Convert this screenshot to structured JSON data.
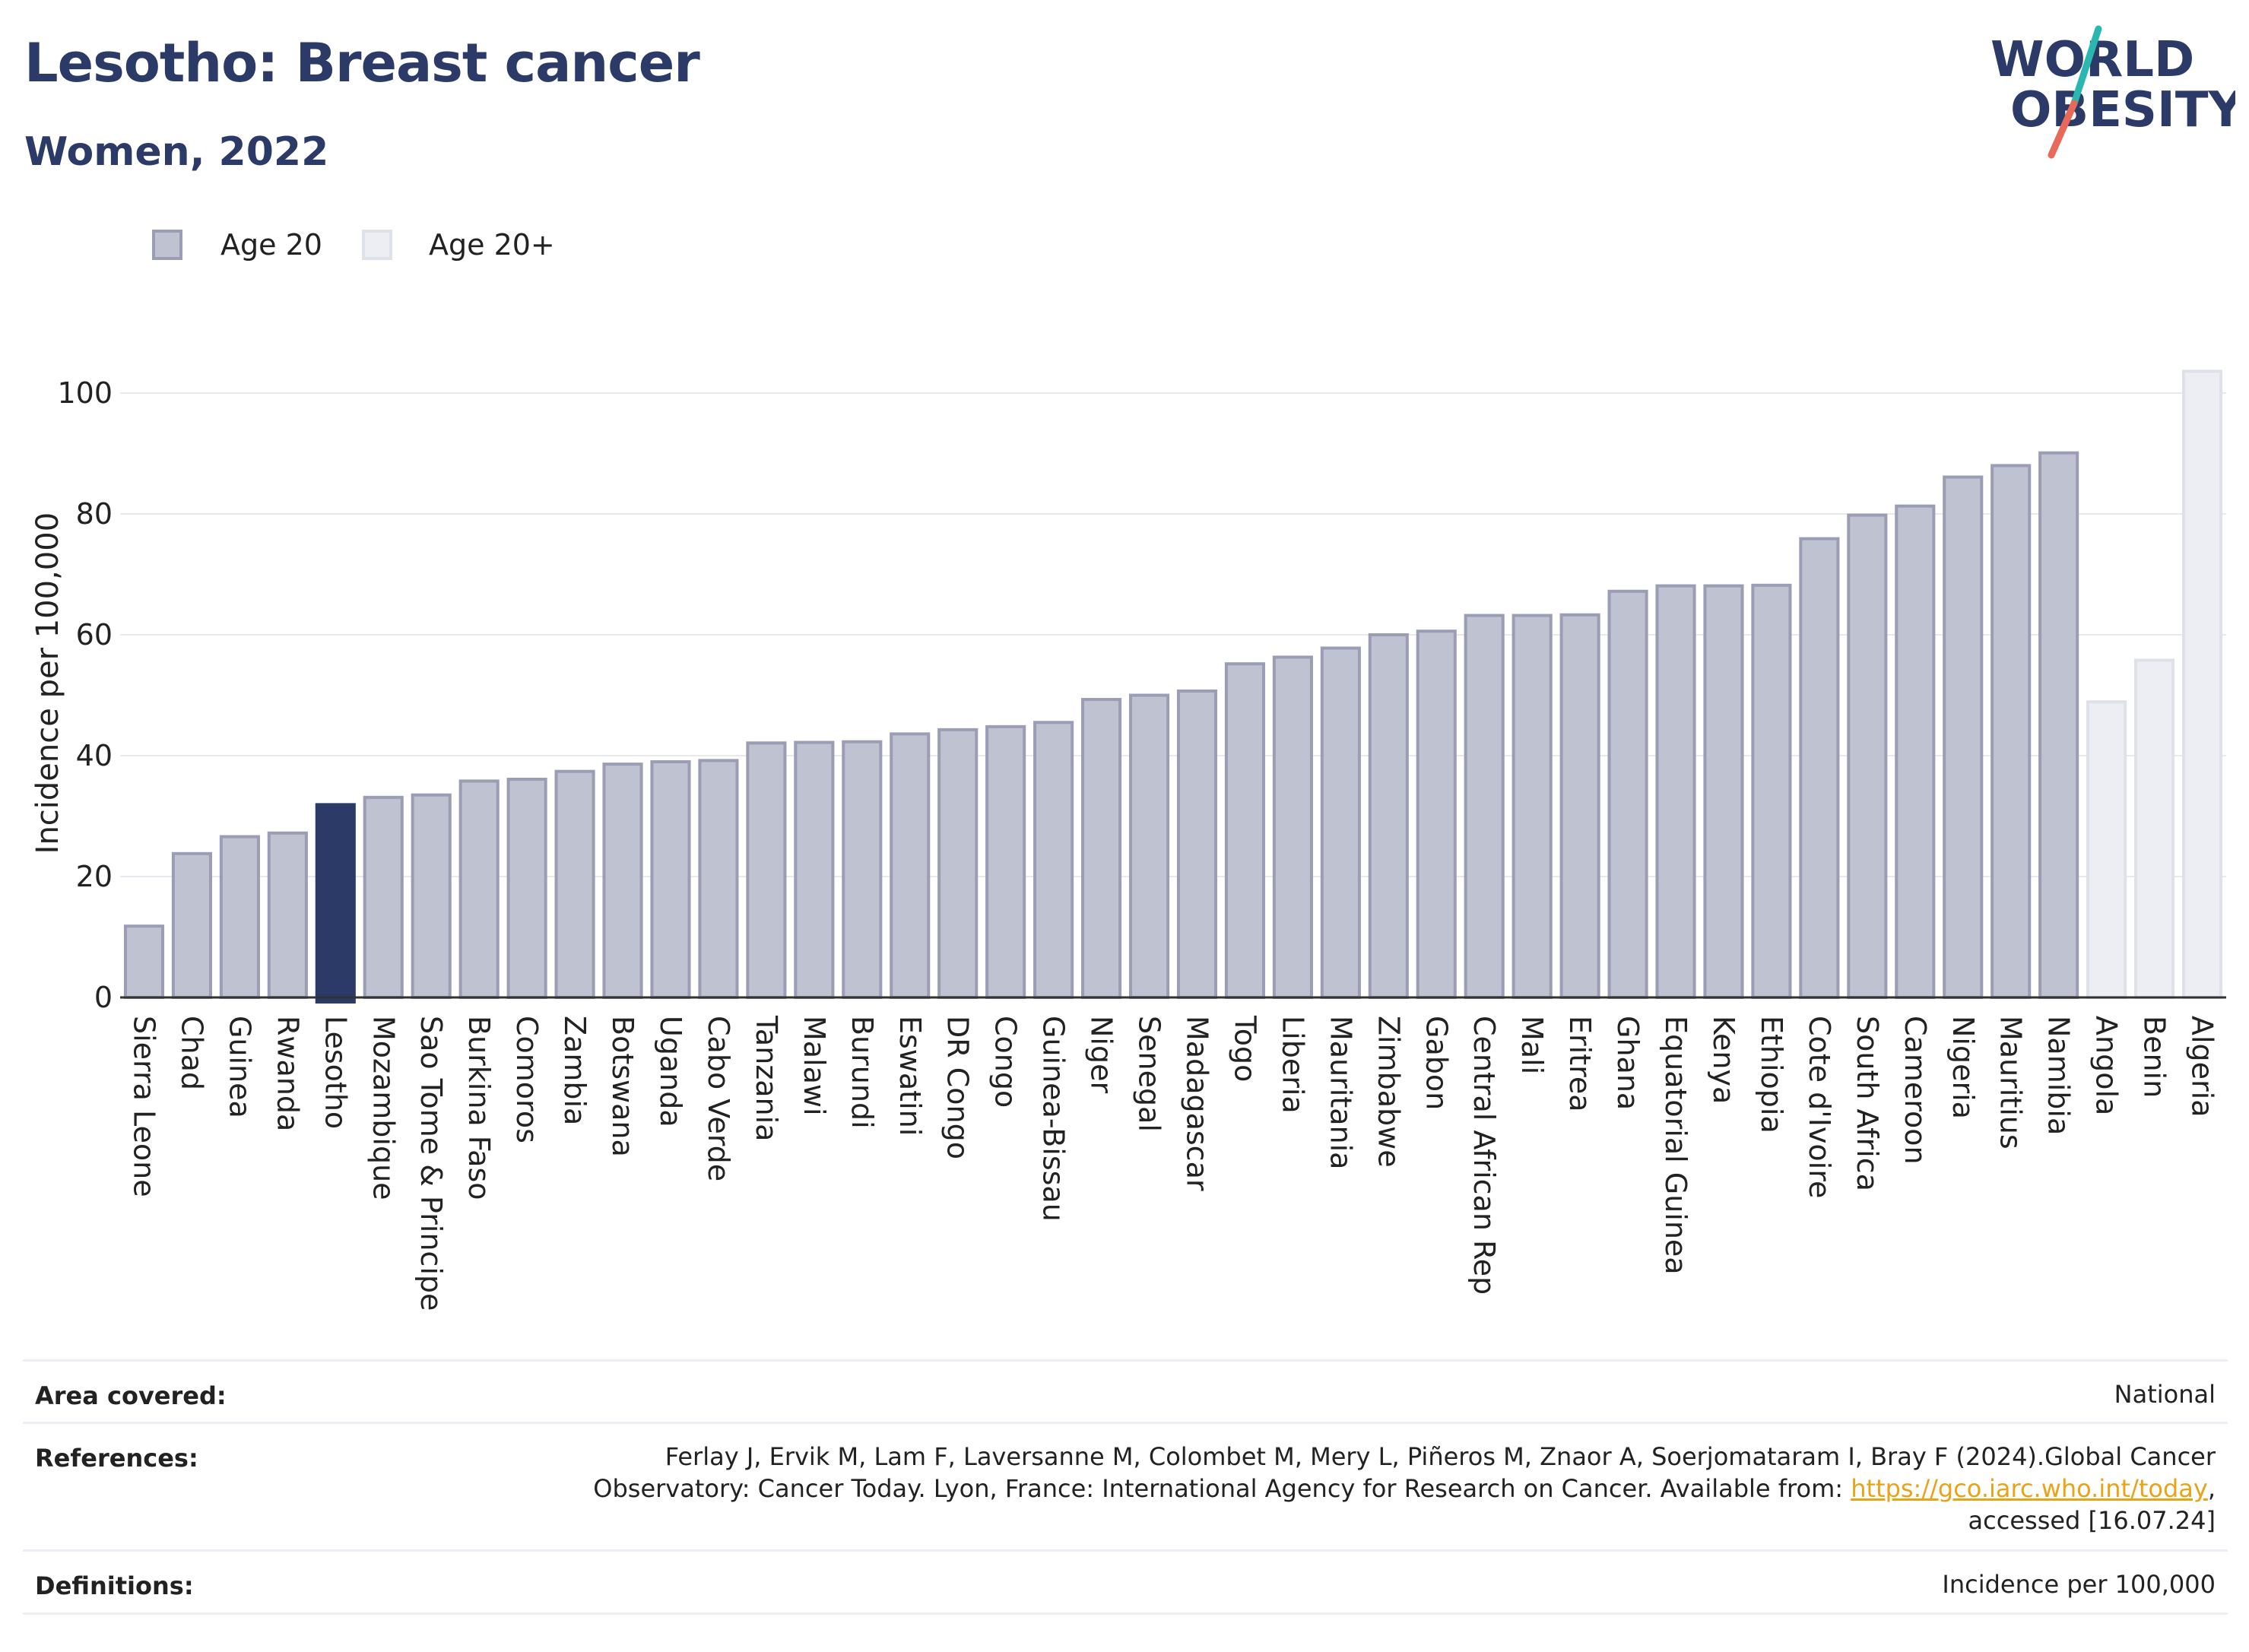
{
  "header": {
    "title": "Lesotho: Breast cancer",
    "subtitle": "Women, 2022"
  },
  "logo": {
    "line1": "WORLD",
    "line2": "OBESITY",
    "colors": {
      "text": "#2b3a67",
      "slash_top": "#2ab7b0",
      "slash_bottom": "#e8685a"
    }
  },
  "legend": [
    {
      "label": "Age 20",
      "fill": "#bfc2d0",
      "stroke": "#9a9db3"
    },
    {
      "label": "Age 20+",
      "fill": "#eceef3",
      "stroke": "#dfe1e8"
    }
  ],
  "chart_data": {
    "type": "bar",
    "title": "",
    "xlabel": "",
    "ylabel": "Incidence per 100,000",
    "ylim": [
      0,
      105
    ],
    "yticks": [
      0,
      20,
      40,
      60,
      80,
      100
    ],
    "grid": true,
    "legend_position": "top-left",
    "highlight": "Lesotho",
    "colors": {
      "age20": "#bfc2d0",
      "age20_stroke": "#9a9db3",
      "age20plus": "#eceef3",
      "age20plus_stroke": "#dfe1e8",
      "highlight": "#2b3a67"
    },
    "categories": [
      "Sierra Leone",
      "Chad",
      "Guinea",
      "Rwanda",
      "Lesotho",
      "Mozambique",
      "Sao Tome & Principe",
      "Burkina Faso",
      "Comoros",
      "Zambia",
      "Botswana",
      "Uganda",
      "Cabo Verde",
      "Tanzania",
      "Malawi",
      "Burundi",
      "Eswatini",
      "DR Congo",
      "Congo",
      "Guinea-Bissau",
      "Niger",
      "Senegal",
      "Madagascar",
      "Togo",
      "Liberia",
      "Mauritania",
      "Zimbabwe",
      "Gabon",
      "Central African Rep",
      "Mali",
      "Eritrea",
      "Ghana",
      "Equatorial Guinea",
      "Kenya",
      "Ethiopia",
      "Cote d'Ivoire",
      "South Africa",
      "Cameroon",
      "Nigeria",
      "Mauritius",
      "Namibia",
      "Angola",
      "Benin",
      "Algeria"
    ],
    "values": [
      11.8,
      23.8,
      26.6,
      27.2,
      31.9,
      33.1,
      33.5,
      35.8,
      36.1,
      37.4,
      38.6,
      39.0,
      39.2,
      42.1,
      42.2,
      42.3,
      43.6,
      44.3,
      44.8,
      45.5,
      49.3,
      50.0,
      50.7,
      55.2,
      56.3,
      57.8,
      60.0,
      60.6,
      63.2,
      63.2,
      63.3,
      67.2,
      68.1,
      68.1,
      68.2,
      75.9,
      79.8,
      81.3,
      86.1,
      88.0,
      90.1,
      48.9,
      55.8,
      103.6
    ],
    "series_group": [
      "Age 20",
      "Age 20",
      "Age 20",
      "Age 20",
      "Age 20",
      "Age 20",
      "Age 20",
      "Age 20",
      "Age 20",
      "Age 20",
      "Age 20",
      "Age 20",
      "Age 20",
      "Age 20",
      "Age 20",
      "Age 20",
      "Age 20",
      "Age 20",
      "Age 20",
      "Age 20",
      "Age 20",
      "Age 20",
      "Age 20",
      "Age 20",
      "Age 20",
      "Age 20",
      "Age 20",
      "Age 20",
      "Age 20",
      "Age 20",
      "Age 20",
      "Age 20",
      "Age 20",
      "Age 20",
      "Age 20",
      "Age 20",
      "Age 20",
      "Age 20",
      "Age 20",
      "Age 20",
      "Age 20",
      "Age 20+",
      "Age 20+",
      "Age 20+"
    ]
  },
  "footer": {
    "area_key": "Area covered:",
    "area_val": "National",
    "refs_key": "References:",
    "refs_line1": "Ferlay J, Ervik M, Lam F, Laversanne M, Colombet M, Mery L, Piñeros M, Znaor A, Soerjomataram I, Bray F (2024).Global Cancer",
    "refs_line2_pre": "Observatory: Cancer Today. Lyon, France: International Agency for Research on Cancer. Available from: ",
    "refs_link": "https://gco.iarc.who.int/today",
    "refs_line2_post": ",",
    "refs_line3": "accessed [16.07.24]",
    "defs_key": "Definitions:",
    "defs_val": "Incidence per 100,000"
  }
}
